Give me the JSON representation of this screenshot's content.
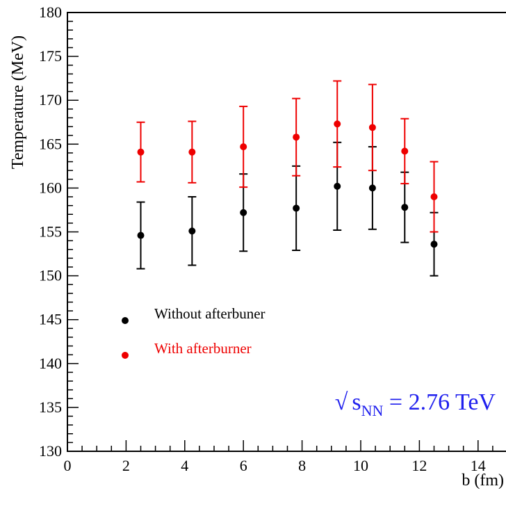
{
  "chart_data": {
    "type": "scatter",
    "xlabel": "b (fm)",
    "ylabel": "Temperature (MeV)",
    "xlim": [
      0,
      15
    ],
    "ylim": [
      130,
      180
    ],
    "x_ticks": [
      0,
      2,
      4,
      6,
      8,
      10,
      12,
      14
    ],
    "y_ticks": [
      130,
      135,
      140,
      145,
      150,
      155,
      160,
      165,
      170,
      175,
      180
    ],
    "legend_placement": "center-left",
    "series": [
      {
        "name": "Without afterbuner",
        "color": "#000000",
        "x": [
          2.5,
          4.25,
          6.0,
          7.8,
          9.2,
          10.4,
          11.5,
          12.5
        ],
        "y": [
          154.6,
          155.1,
          157.2,
          157.7,
          160.2,
          160.0,
          157.8,
          153.6
        ],
        "err_low": [
          3.8,
          3.9,
          4.4,
          4.8,
          5.0,
          4.7,
          4.0,
          3.6
        ],
        "err_high": [
          3.8,
          3.9,
          4.4,
          4.8,
          5.0,
          4.7,
          4.0,
          3.6
        ]
      },
      {
        "name": "With afterburner",
        "color": "#ee0000",
        "x": [
          2.5,
          4.25,
          6.0,
          7.8,
          9.2,
          10.4,
          11.5,
          12.5
        ],
        "y": [
          164.1,
          164.1,
          164.7,
          165.8,
          167.3,
          166.9,
          164.2,
          159.0
        ],
        "err_low": [
          3.4,
          3.5,
          4.6,
          4.4,
          4.9,
          4.9,
          3.7,
          4.0
        ],
        "err_high": [
          3.4,
          3.5,
          4.6,
          4.4,
          4.9,
          4.9,
          3.7,
          4.0
        ]
      }
    ],
    "annotation": {
      "root": "√",
      "base": "s",
      "sub": "NN",
      "rest": " = 2.76 TeV",
      "color": "#2020ee"
    }
  }
}
